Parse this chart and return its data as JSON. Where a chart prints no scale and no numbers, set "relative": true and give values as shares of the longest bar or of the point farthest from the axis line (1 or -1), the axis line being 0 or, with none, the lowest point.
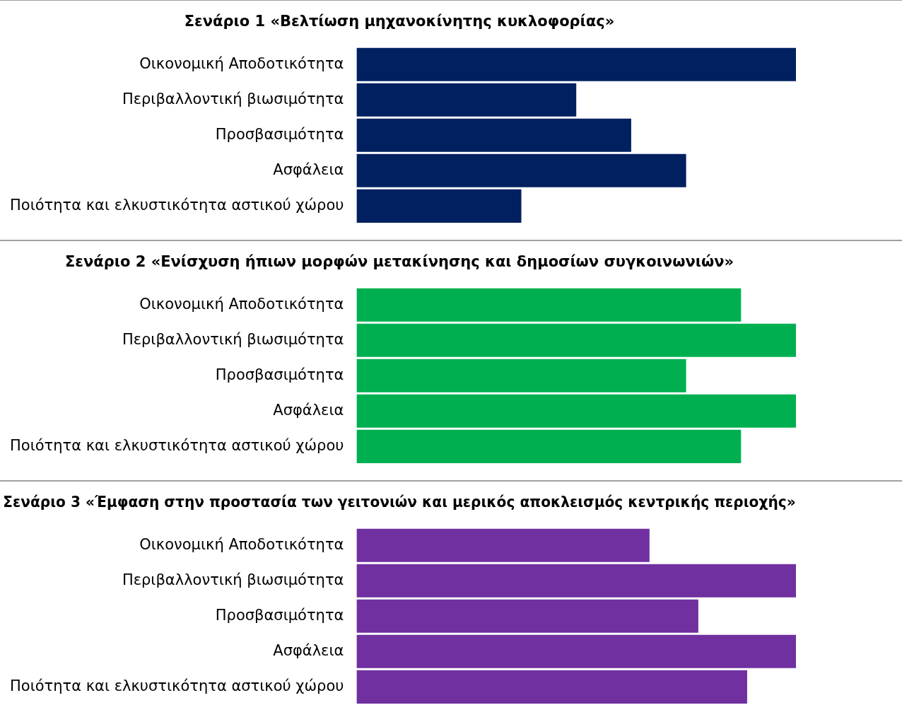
{
  "chart_data": [
    {
      "type": "bar",
      "orientation": "horizontal",
      "relative": true,
      "title": "Σενάριο 1 «Βελτίωση μηχανοκίνητης κυκλοφορίας»",
      "categories": [
        "Οικονομική Αποδοτικότητα",
        "Περιβαλλοντική βιωσιμότητα",
        "Προσβασιμότητα",
        "Ασφάλεια",
        "Ποιότητα και ελκυστικότητα αστικού χώρου"
      ],
      "values": [
        1,
        0.5,
        0.625,
        0.75,
        0.375
      ],
      "color": "#002060",
      "grid": false,
      "legend": false
    },
    {
      "type": "bar",
      "orientation": "horizontal",
      "relative": true,
      "title": "Σενάριο 2 «Ενίσχυση ήπιων μορφών μετακίνησης και δημοσίων συγκοινωνιών»",
      "categories": [
        "Οικονομική Αποδοτικότητα",
        "Περιβαλλοντική βιωσιμότητα",
        "Προσβασιμότητα",
        "Ασφάλεια",
        "Ποιότητα και ελκυστικότητα αστικού χώρου"
      ],
      "values": [
        0.875,
        1,
        0.75,
        1,
        0.875
      ],
      "color": "#00b050",
      "grid": false,
      "legend": false
    },
    {
      "type": "bar",
      "orientation": "horizontal",
      "relative": true,
      "title": "Σενάριο 3 «Έμφαση στην προστασία των γειτονιών και μερικός αποκλεισμός κεντρικής περιοχής»",
      "categories": [
        "Οικονομική Αποδοτικότητα",
        "Περιβαλλοντική βιωσιμότητα",
        "Προσβασιμότητα",
        "Ασφάλεια",
        "Ποιότητα και ελκυστικότητα αστικού χώρου"
      ],
      "values": [
        0.6667,
        1,
        0.7778,
        1,
        0.8889
      ],
      "color": "#7030a0",
      "grid": false,
      "legend": false
    }
  ]
}
